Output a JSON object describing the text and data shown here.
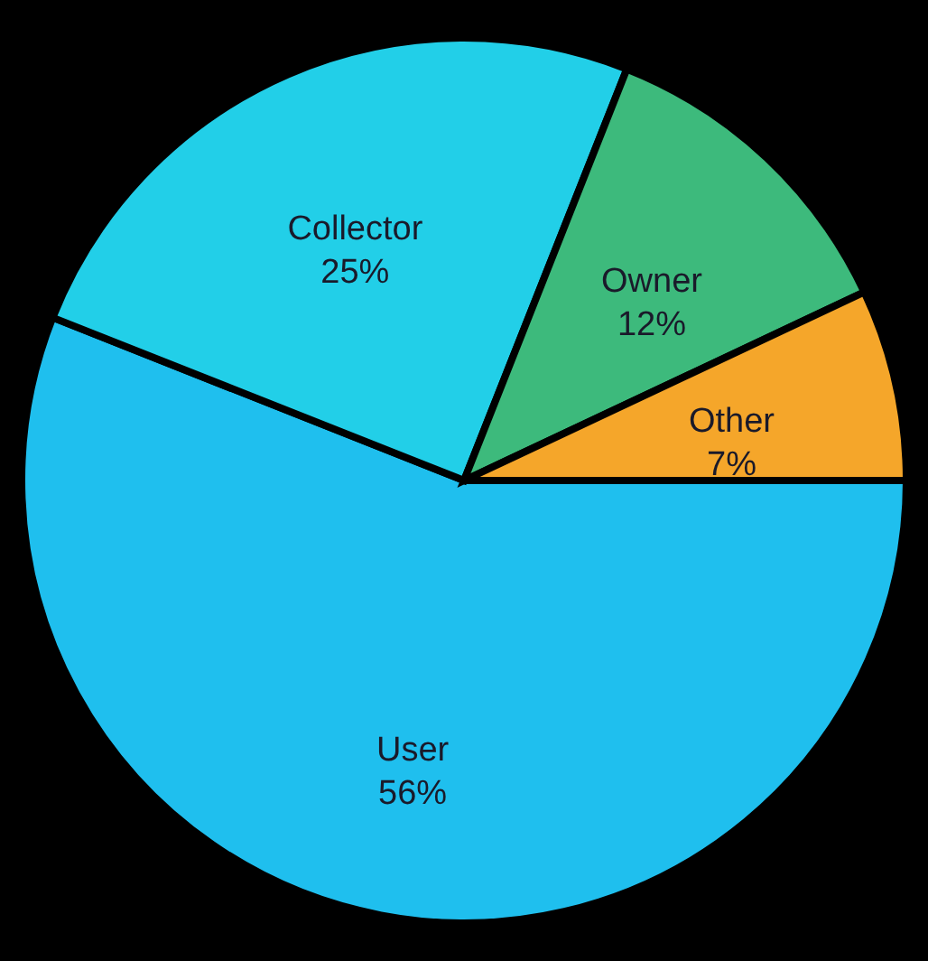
{
  "chart_data": {
    "type": "pie",
    "categories": [
      "User",
      "Collector",
      "Owner",
      "Other"
    ],
    "values": [
      56,
      25,
      12,
      7
    ],
    "colors": [
      "#1fbfee",
      "#22cfe8",
      "#3dba7c",
      "#f5a62a"
    ],
    "value_labels": [
      "56%",
      "25%",
      "12%",
      "7%"
    ],
    "legend": false
  }
}
